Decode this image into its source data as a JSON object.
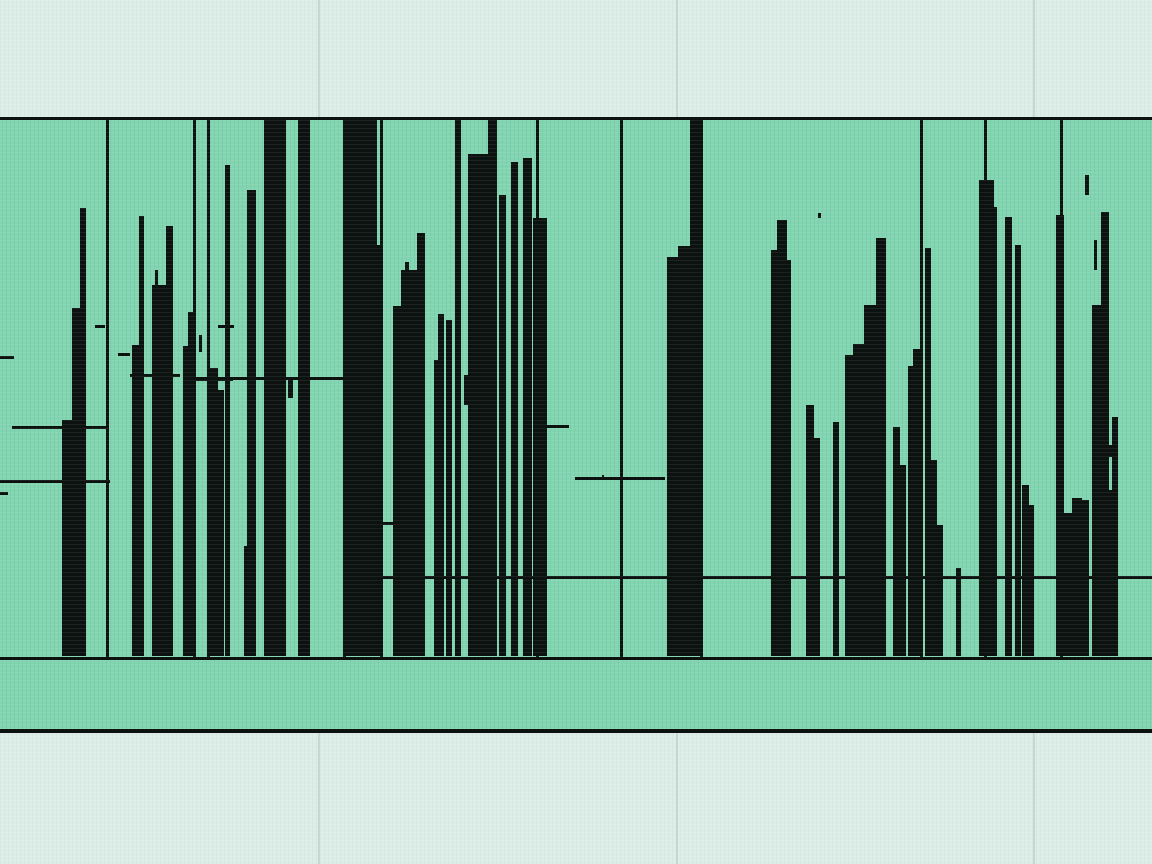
{
  "colors": {
    "background": "#dcede7",
    "clip_fill": "#82d5b1",
    "waveform": "#0b1210",
    "grid": "#c9d5d1"
  },
  "waveform_view": {
    "icon": "audio-waveform-icon",
    "text": []
  }
}
